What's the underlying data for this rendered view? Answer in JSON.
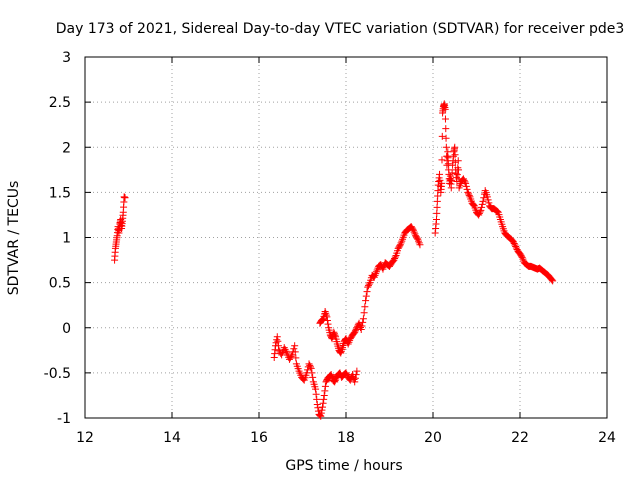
{
  "chart_data": {
    "type": "scatter",
    "title": "Day 173 of 2021, Sidereal Day-to-day VTEC variation (SDTVAR) for receiver pde3",
    "xlabel": "GPS time / hours",
    "ylabel": "SDTVAR / TECUs",
    "xlim": [
      12,
      24
    ],
    "ylim": [
      -1,
      3
    ],
    "x_ticks": [
      12,
      14,
      16,
      18,
      20,
      22,
      24
    ],
    "y_ticks": [
      -1,
      -0.5,
      0,
      0.5,
      1,
      1.5,
      2,
      2.5,
      3
    ],
    "x_tick_labels": [
      "12",
      "14",
      "16",
      "18",
      "20",
      "22",
      "24"
    ],
    "y_tick_labels": [
      "-1",
      "-0.5",
      "0",
      "0.5",
      "1",
      "1.5",
      "2",
      "2.5",
      "3"
    ],
    "grid": true,
    "marker": "+",
    "series": [
      {
        "name": "SDTVAR",
        "color": "#ff0000",
        "segments": [
          {
            "points": [
              [
                12.68,
                0.75
              ],
              [
                12.7,
                0.88
              ],
              [
                12.72,
                0.95
              ],
              [
                12.74,
                1.02
              ],
              [
                12.76,
                1.12
              ],
              [
                12.78,
                1.05
              ],
              [
                12.8,
                1.15
              ],
              [
                12.82,
                1.2
              ],
              [
                12.84,
                1.1
              ],
              [
                12.86,
                1.18
              ],
              [
                12.88,
                1.28
              ],
              [
                12.9,
                1.45
              ],
              [
                12.92,
                1.44
              ]
            ]
          },
          {
            "points": [
              [
                16.35,
                -0.33
              ],
              [
                16.38,
                -0.2
              ],
              [
                16.42,
                -0.1
              ],
              [
                16.46,
                -0.25
              ],
              [
                16.52,
                -0.3
              ],
              [
                16.58,
                -0.22
              ],
              [
                16.64,
                -0.28
              ],
              [
                16.7,
                -0.35
              ],
              [
                16.76,
                -0.3
              ],
              [
                16.82,
                -0.2
              ],
              [
                16.86,
                -0.4
              ],
              [
                16.92,
                -0.48
              ],
              [
                16.98,
                -0.55
              ],
              [
                17.04,
                -0.58
              ],
              [
                17.1,
                -0.5
              ],
              [
                17.15,
                -0.4
              ],
              [
                17.2,
                -0.45
              ],
              [
                17.25,
                -0.6
              ],
              [
                17.3,
                -0.68
              ],
              [
                17.34,
                -0.85
              ],
              [
                17.38,
                -0.96
              ],
              [
                17.42,
                -0.98
              ],
              [
                17.46,
                -0.88
              ],
              [
                17.5,
                -0.75
              ],
              [
                17.54,
                -0.6
              ],
              [
                17.58,
                -0.56
              ],
              [
                17.62,
                -0.54
              ],
              [
                17.66,
                -0.52
              ],
              [
                17.7,
                -0.58
              ],
              [
                17.74,
                -0.6
              ],
              [
                17.78,
                -0.55
              ],
              [
                17.82,
                -0.52
              ],
              [
                17.86,
                -0.5
              ],
              [
                17.9,
                -0.55
              ],
              [
                17.95,
                -0.52
              ],
              [
                18.0,
                -0.5
              ],
              [
                18.05,
                -0.55
              ],
              [
                18.1,
                -0.58
              ],
              [
                18.15,
                -0.52
              ],
              [
                18.2,
                -0.6
              ],
              [
                18.25,
                -0.48
              ]
            ]
          },
          {
            "points": [
              [
                17.4,
                0.05
              ],
              [
                17.44,
                0.08
              ],
              [
                17.48,
                0.1
              ],
              [
                17.52,
                0.18
              ],
              [
                17.56,
                0.12
              ],
              [
                17.6,
                0.0
              ],
              [
                17.64,
                -0.08
              ],
              [
                17.68,
                -0.12
              ],
              [
                17.72,
                -0.05
              ],
              [
                17.76,
                -0.1
              ],
              [
                17.8,
                -0.18
              ],
              [
                17.84,
                -0.25
              ],
              [
                17.88,
                -0.28
              ],
              [
                17.92,
                -0.22
              ],
              [
                17.96,
                -0.15
              ],
              [
                18.0,
                -0.12
              ],
              [
                18.05,
                -0.18
              ],
              [
                18.1,
                -0.12
              ],
              [
                18.15,
                -0.08
              ],
              [
                18.2,
                -0.05
              ],
              [
                18.25,
                0.0
              ],
              [
                18.3,
                0.05
              ],
              [
                18.35,
                -0.02
              ],
              [
                18.4,
                0.1
              ],
              [
                18.45,
                0.3
              ],
              [
                18.5,
                0.45
              ],
              [
                18.55,
                0.5
              ],
              [
                18.6,
                0.58
              ],
              [
                18.65,
                0.56
              ],
              [
                18.7,
                0.62
              ],
              [
                18.75,
                0.68
              ],
              [
                18.8,
                0.7
              ],
              [
                18.85,
                0.65
              ],
              [
                18.9,
                0.72
              ],
              [
                18.95,
                0.7
              ],
              [
                19.0,
                0.68
              ],
              [
                19.05,
                0.72
              ],
              [
                19.1,
                0.75
              ],
              [
                19.15,
                0.8
              ],
              [
                19.2,
                0.88
              ],
              [
                19.25,
                0.92
              ],
              [
                19.3,
                0.98
              ],
              [
                19.35,
                1.05
              ],
              [
                19.4,
                1.08
              ],
              [
                19.45,
                1.1
              ],
              [
                19.5,
                1.12
              ],
              [
                19.55,
                1.08
              ],
              [
                19.6,
                1.02
              ],
              [
                19.65,
                0.98
              ],
              [
                19.7,
                0.92
              ]
            ]
          },
          {
            "points": [
              [
                20.05,
                1.05
              ],
              [
                20.08,
                1.2
              ],
              [
                20.1,
                1.4
              ],
              [
                20.12,
                1.58
              ],
              [
                20.15,
                1.7
              ],
              [
                20.18,
                1.5
              ],
              [
                20.2,
                1.6
              ],
              [
                20.22,
                2.38
              ],
              [
                20.24,
                2.45
              ],
              [
                20.26,
                2.48
              ],
              [
                20.28,
                2.42
              ],
              [
                20.3,
                2.1
              ],
              [
                20.32,
                1.8
              ],
              [
                20.34,
                1.95
              ],
              [
                20.36,
                1.75
              ],
              [
                20.38,
                1.6
              ],
              [
                20.4,
                1.68
              ],
              [
                20.42,
                1.55
              ],
              [
                20.45,
                1.8
              ],
              [
                20.48,
                1.95
              ],
              [
                20.5,
                2.0
              ],
              [
                20.52,
                1.75
              ],
              [
                20.55,
                1.62
              ],
              [
                20.58,
                1.85
              ],
              [
                20.6,
                1.55
              ],
              [
                20.65,
                1.62
              ],
              [
                20.7,
                1.65
              ],
              [
                20.75,
                1.6
              ],
              [
                20.8,
                1.5
              ],
              [
                20.85,
                1.45
              ],
              [
                20.9,
                1.38
              ],
              [
                20.95,
                1.35
              ],
              [
                21.0,
                1.28
              ],
              [
                21.05,
                1.25
              ],
              [
                21.1,
                1.3
              ],
              [
                21.15,
                1.4
              ],
              [
                21.2,
                1.52
              ],
              [
                21.25,
                1.45
              ],
              [
                21.3,
                1.35
              ],
              [
                21.35,
                1.32
              ],
              [
                21.4,
                1.32
              ],
              [
                21.45,
                1.3
              ],
              [
                21.5,
                1.28
              ],
              [
                21.55,
                1.2
              ],
              [
                21.6,
                1.12
              ],
              [
                21.65,
                1.05
              ],
              [
                21.7,
                1.02
              ],
              [
                21.75,
                1.0
              ],
              [
                21.8,
                0.98
              ],
              [
                21.85,
                0.95
              ],
              [
                21.9,
                0.9
              ],
              [
                21.95,
                0.85
              ],
              [
                22.0,
                0.82
              ],
              [
                22.05,
                0.78
              ],
              [
                22.1,
                0.72
              ],
              [
                22.15,
                0.7
              ],
              [
                22.2,
                0.68
              ],
              [
                22.25,
                0.68
              ],
              [
                22.3,
                0.67
              ],
              [
                22.35,
                0.66
              ],
              [
                22.4,
                0.65
              ],
              [
                22.45,
                0.66
              ],
              [
                22.5,
                0.64
              ],
              [
                22.55,
                0.62
              ],
              [
                22.6,
                0.6
              ],
              [
                22.65,
                0.58
              ],
              [
                22.7,
                0.55
              ],
              [
                22.75,
                0.52
              ]
            ]
          }
        ]
      }
    ]
  }
}
